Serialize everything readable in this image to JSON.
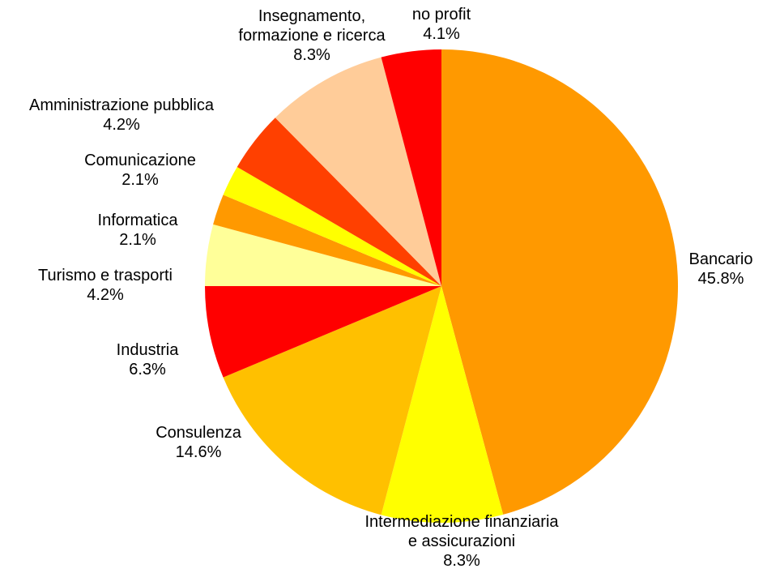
{
  "chart_data": {
    "type": "pie",
    "categories": [
      "Bancario",
      "Intermediazione finanziaria\ne assicurazioni",
      "Consulenza",
      "Industria",
      "Turismo e trasporti",
      "Informatica",
      "Comunicazione",
      "Amministrazione pubblica",
      "Insegnamento,\nformazione e ricerca",
      "no profit"
    ],
    "values": [
      45.8,
      8.3,
      14.6,
      6.3,
      4.2,
      2.1,
      2.1,
      4.2,
      8.3,
      4.1
    ],
    "value_labels": [
      "45.8%",
      "8.3%",
      "14.6%",
      "6.3%",
      "4.2%",
      "2.1%",
      "2.1%",
      "4.2%",
      "8.3%",
      "4.1%"
    ],
    "colors": [
      "#FF9900",
      "#FFFF00",
      "#FFC000",
      "#FF0000",
      "#FFFF99",
      "#FF9900",
      "#FFFF00",
      "#FF4000",
      "#FFCC99",
      "#FF0000"
    ]
  }
}
